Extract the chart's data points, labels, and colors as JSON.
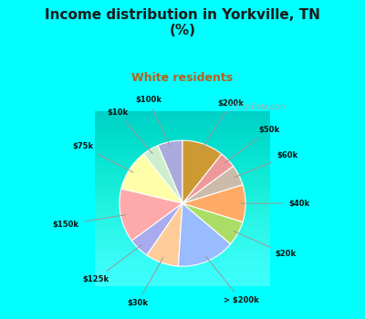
{
  "title": "Income distribution in Yorkville, TN\n(%)",
  "subtitle": "White residents",
  "title_color": "#1a1a1a",
  "subtitle_color": "#b8601a",
  "background_color": "#00ffff",
  "chart_bg_top": "#e8f8f0",
  "chart_bg_bot": "#c8e8d8",
  "watermark": "ⓘ City-Data.com",
  "labels": [
    "$100k",
    "$10k",
    "$75k",
    "$150k",
    "$125k",
    "$30k",
    "> $200k",
    "$20k",
    "$40k",
    "$60k",
    "$50k",
    "$200k"
  ],
  "values": [
    6,
    4,
    10,
    13,
    5,
    8,
    14,
    6,
    9,
    5,
    4,
    10
  ],
  "colors": [
    "#aaaadd",
    "#cceecc",
    "#ffffaa",
    "#ffaaaa",
    "#aaaaee",
    "#ffcc99",
    "#99bbff",
    "#aadd66",
    "#ffaa66",
    "#ccbbaa",
    "#ee9999",
    "#cc9933"
  ],
  "startangle": 90
}
